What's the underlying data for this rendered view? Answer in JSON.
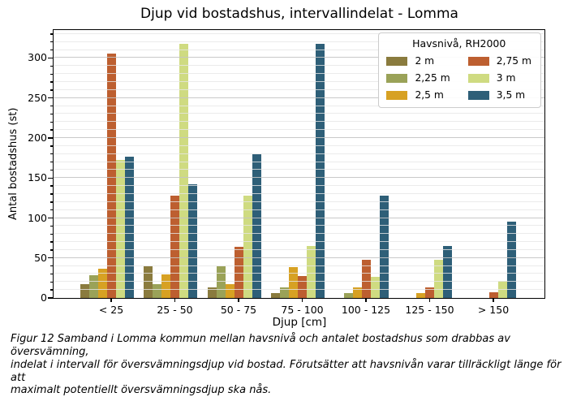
{
  "chart_data": {
    "type": "bar",
    "title": "Djup vid bostadshus, intervallindelat - Lomma",
    "xlabel": "Djup [cm]",
    "ylabel": "Antal bostadshus (st)",
    "ylim": [
      0,
      335
    ],
    "yticks": [
      0,
      50,
      100,
      150,
      200,
      250,
      300
    ],
    "minor_grid_step": 10,
    "grid": "horizontal, minor every 10, major every 50",
    "categories": [
      "< 25",
      "25 - 50",
      "50 - 75",
      "75 - 100",
      "100 - 125",
      "125 - 150",
      "> 150"
    ],
    "series": [
      {
        "name": "2 m",
        "color": "#8a7b3e",
        "values": [
          17,
          40,
          13,
          6,
          0,
          0,
          0
        ]
      },
      {
        "name": "2,25 m",
        "color": "#9aa258",
        "values": [
          28,
          17,
          40,
          13,
          6,
          0,
          0
        ]
      },
      {
        "name": "2,5 m",
        "color": "#d7a123",
        "values": [
          37,
          29,
          17,
          39,
          13,
          6,
          0
        ]
      },
      {
        "name": "2,75 m",
        "color": "#bd5f30",
        "values": [
          306,
          128,
          64,
          27,
          48,
          13,
          7
        ]
      },
      {
        "name": "3 m",
        "color": "#cfdb81",
        "values": [
          173,
          318,
          128,
          65,
          26,
          48,
          21
        ]
      },
      {
        "name": "3,5 m",
        "color": "#2e5f78",
        "values": [
          177,
          142,
          180,
          318,
          128,
          65,
          95
        ]
      }
    ],
    "legend": {
      "title": "Havsnivå, RH2000",
      "position": "upper right",
      "columns": 2
    }
  },
  "caption": {
    "lines": [
      "Figur 12 Samband i Lomma kommun mellan havsnivå och antalet bostadshus som drabbas av översvämning,",
      "indelat i intervall för översvämningsdjup vid bostad. Förutsätter att havsnivån varar tillräckligt länge för att",
      "maximalt potentiellt översvämningsdjup ska nås."
    ]
  }
}
